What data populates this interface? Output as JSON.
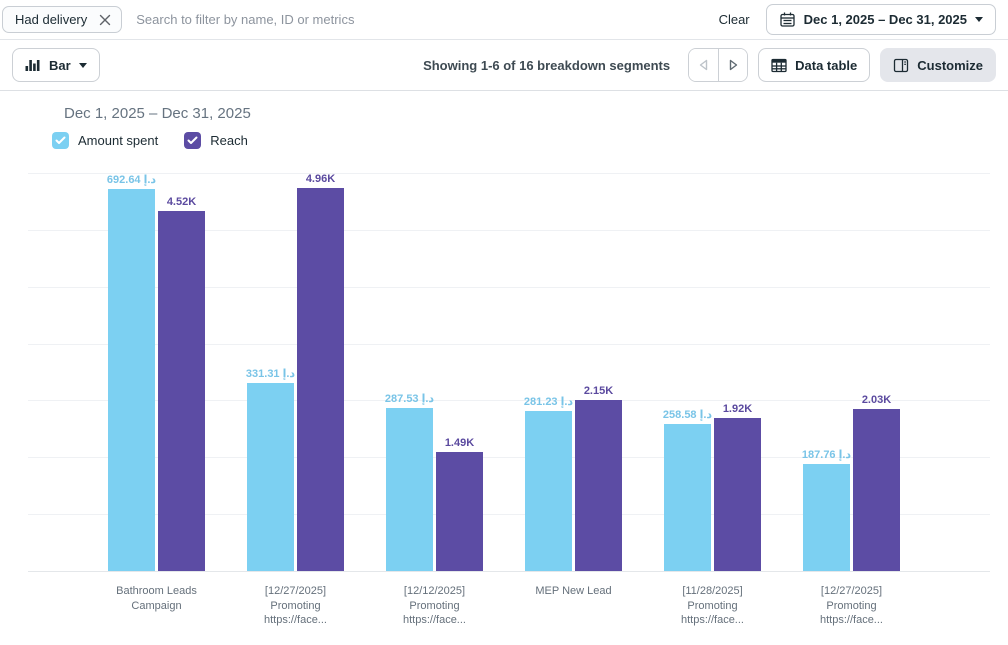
{
  "filter_bar": {
    "chip_label": "Had delivery",
    "search_placeholder": "Search to filter by name, ID or metrics",
    "clear_label": "Clear",
    "date_range_label": "Dec 1, 2025 – Dec 31, 2025"
  },
  "toolbar": {
    "chart_type_label": "Bar",
    "showing_text": "Showing 1-6 of 16 breakdown segments",
    "data_table_label": "Data table",
    "customize_label": "Customize"
  },
  "chart": {
    "title": "Dec 1, 2025 – Dec 31, 2025",
    "legend": [
      {
        "label": "Amount spent",
        "color": "#7cd0f2"
      },
      {
        "label": "Reach",
        "color": "#5c4ca4"
      }
    ]
  },
  "chart_data": {
    "type": "bar",
    "title": "Dec 1, 2025 – Dec 31, 2025",
    "categories": [
      "Bathroom Leads Campaign",
      "[12/27/2025] Promoting https://face...",
      "[12/12/2025] Promoting https://face...",
      "MEP New Lead",
      "[11/28/2025] Promoting https://face...",
      "[12/27/2025] Promoting https://face..."
    ],
    "series": [
      {
        "name": "Amount spent",
        "color": "#7cd0f2",
        "label_color": "#79c4e7",
        "axis_max": 700,
        "values": [
          692.64,
          331.31,
          287.53,
          281.23,
          258.58,
          187.76
        ],
        "value_labels": [
          "692.64 د.إ",
          "331.31 د.إ",
          "287.53 د.إ",
          "281.23 د.إ",
          "258.58 د.إ",
          "187.76 د.إ"
        ]
      },
      {
        "name": "Reach",
        "color": "#5c4ca4",
        "label_color": "#5b4a9f",
        "axis_max": 5000,
        "values": [
          4520,
          4960,
          1490,
          2150,
          1920,
          2030
        ],
        "value_labels": [
          "4.52K",
          "4.96K",
          "1.49K",
          "2.15K",
          "1.92K",
          "2.03K"
        ]
      }
    ],
    "grid": true,
    "gridline_count": 8,
    "legend_position": "top-left",
    "y_axis_labels_visible": false
  }
}
